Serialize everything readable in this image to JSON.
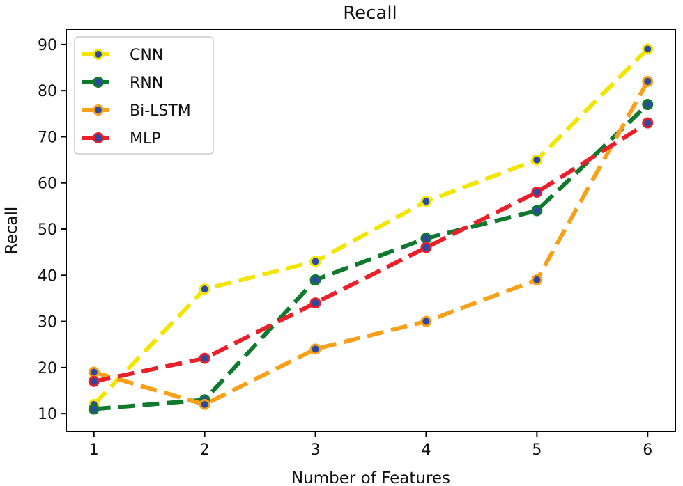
{
  "chart_data": {
    "type": "line",
    "title": "Recall",
    "xlabel": "Number of Features",
    "ylabel": "Recall",
    "x": [
      1,
      2,
      3,
      4,
      5,
      6
    ],
    "xticks": [
      "1",
      "2",
      "3",
      "4",
      "5",
      "6"
    ],
    "yticks": [
      "10",
      "20",
      "30",
      "40",
      "50",
      "60",
      "70",
      "80",
      "90"
    ],
    "ytick_values": [
      10,
      20,
      30,
      40,
      50,
      60,
      70,
      80,
      90
    ],
    "xlim": [
      0.75,
      6.25
    ],
    "ylim": [
      6.1,
      93.3
    ],
    "legend_position": "top-left",
    "marker_color": "#2d4aa0",
    "series": [
      {
        "name": "CNN",
        "values": [
          12,
          37,
          43,
          56,
          65,
          89
        ],
        "color": "#f2e600"
      },
      {
        "name": "RNN",
        "values": [
          11,
          13,
          39,
          48,
          54,
          77
        ],
        "color": "#0f7a2e"
      },
      {
        "name": "Bi-LSTM",
        "values": [
          19,
          12,
          24,
          30,
          39,
          82
        ],
        "color": "#f7a11a"
      },
      {
        "name": "MLP",
        "values": [
          17,
          22,
          34,
          46,
          58,
          73
        ],
        "color": "#e8202a"
      }
    ]
  }
}
